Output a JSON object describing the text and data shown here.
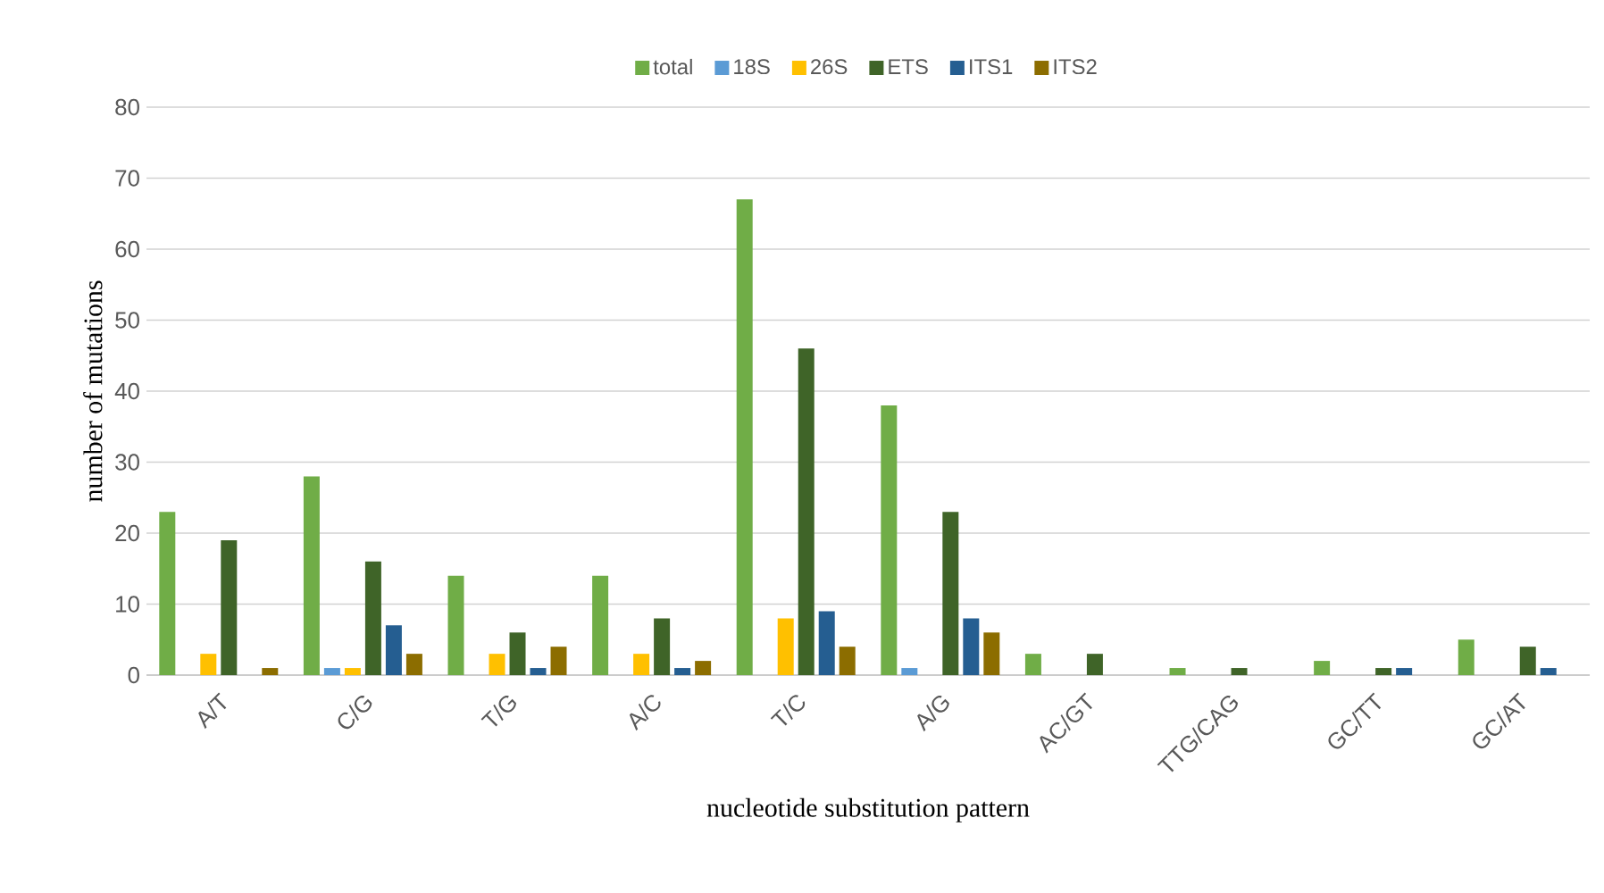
{
  "chart_data": {
    "type": "bar",
    "xlabel": "nucleotide substitution pattern",
    "ylabel": "number of mutations",
    "categories": [
      "A/T",
      "C/G",
      "T/G",
      "A/C",
      "T/C",
      "A/G",
      "AC/GT",
      "TTG/CAG",
      "GC/TT",
      "GC/AT"
    ],
    "series": [
      {
        "name": "total",
        "color": "#70ad47",
        "values": [
          23,
          28,
          14,
          14,
          67,
          38,
          3,
          1,
          2,
          5
        ]
      },
      {
        "name": "18S",
        "color": "#5b9bd5",
        "values": [
          0,
          1,
          0,
          0,
          0,
          1,
          0,
          0,
          0,
          0
        ]
      },
      {
        "name": "26S",
        "color": "#ffc000",
        "values": [
          3,
          1,
          3,
          3,
          8,
          0,
          0,
          0,
          0,
          0
        ]
      },
      {
        "name": "ETS",
        "color": "#3f6428",
        "values": [
          19,
          16,
          6,
          8,
          46,
          23,
          3,
          1,
          1,
          4
        ]
      },
      {
        "name": "ITS1",
        "color": "#255e91",
        "values": [
          0,
          7,
          1,
          1,
          9,
          8,
          0,
          0,
          1,
          1
        ]
      },
      {
        "name": "ITS2",
        "color": "#8c6d00",
        "values": [
          1,
          3,
          4,
          2,
          4,
          6,
          0,
          0,
          0,
          0
        ]
      }
    ],
    "ylim": [
      0,
      80
    ],
    "yticks": [
      0,
      10,
      20,
      30,
      40,
      50,
      60,
      70,
      80
    ],
    "grid": "y",
    "legend": "top"
  }
}
